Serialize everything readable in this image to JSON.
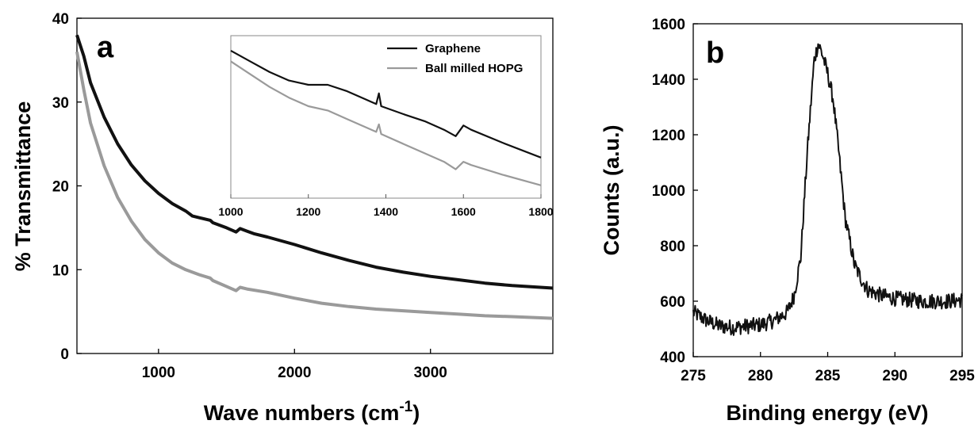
{
  "chart_data": [
    {
      "panel_label": "a",
      "type": "line",
      "xlabel": "Wave numbers (cm",
      "xlabel_sup": "-1",
      "xlabel_close": ")",
      "ylabel": "% Transmittance",
      "xlim": [
        400,
        3900
      ],
      "ylim": [
        0,
        40
      ],
      "xticks": [
        "1000",
        "2000",
        "3000"
      ],
      "yticks": [
        "0",
        "10",
        "20",
        "30",
        "40"
      ],
      "series": [
        {
          "name": "Graphene",
          "color": "#111111",
          "points": [
            [
              400,
              38.0
            ],
            [
              450,
              35.5
            ],
            [
              500,
              32.3
            ],
            [
              600,
              28.2
            ],
            [
              700,
              25.0
            ],
            [
              800,
              22.5
            ],
            [
              900,
              20.6
            ],
            [
              1000,
              19.1
            ],
            [
              1100,
              17.9
            ],
            [
              1200,
              17.0
            ],
            [
              1250,
              16.4
            ],
            [
              1300,
              16.2
            ],
            [
              1380,
              15.9
            ],
            [
              1400,
              15.6
            ],
            [
              1500,
              15.0
            ],
            [
              1570,
              14.5
            ],
            [
              1600,
              14.9
            ],
            [
              1650,
              14.6
            ],
            [
              1700,
              14.3
            ],
            [
              1800,
              13.9
            ],
            [
              2000,
              13.0
            ],
            [
              2200,
              12.0
            ],
            [
              2400,
              11.1
            ],
            [
              2600,
              10.3
            ],
            [
              2800,
              9.7
            ],
            [
              3000,
              9.2
            ],
            [
              3200,
              8.8
            ],
            [
              3400,
              8.4
            ],
            [
              3600,
              8.1
            ],
            [
              3900,
              7.8
            ]
          ]
        },
        {
          "name": "Ball milled HOPG",
          "color": "#9a9a9a",
          "points": [
            [
              400,
              36.0
            ],
            [
              450,
              31.5
            ],
            [
              500,
              27.5
            ],
            [
              600,
              22.4
            ],
            [
              700,
              18.6
            ],
            [
              800,
              15.8
            ],
            [
              900,
              13.6
            ],
            [
              1000,
              12.0
            ],
            [
              1100,
              10.8
            ],
            [
              1200,
              10.0
            ],
            [
              1300,
              9.4
            ],
            [
              1380,
              9.0
            ],
            [
              1400,
              8.7
            ],
            [
              1500,
              8.0
            ],
            [
              1570,
              7.5
            ],
            [
              1600,
              7.9
            ],
            [
              1650,
              7.7
            ],
            [
              1800,
              7.3
            ],
            [
              2000,
              6.6
            ],
            [
              2200,
              6.0
            ],
            [
              2400,
              5.6
            ],
            [
              2600,
              5.3
            ],
            [
              2800,
              5.1
            ],
            [
              3000,
              4.9
            ],
            [
              3200,
              4.7
            ],
            [
              3400,
              4.5
            ],
            [
              3600,
              4.4
            ],
            [
              3900,
              4.2
            ]
          ]
        }
      ],
      "inset": {
        "type": "line",
        "xlim": [
          1000,
          1800
        ],
        "xticks": [
          "1000",
          "1200",
          "1400",
          "1600",
          "1800"
        ],
        "series": [
          {
            "name": "Graphene",
            "points": [
              [
                1000,
                19.2
              ],
              [
                1050,
                18.7
              ],
              [
                1100,
                18.2
              ],
              [
                1150,
                17.8
              ],
              [
                1200,
                17.6
              ],
              [
                1250,
                17.6
              ],
              [
                1300,
                17.3
              ],
              [
                1350,
                16.9
              ],
              [
                1375,
                16.7
              ],
              [
                1382,
                17.2
              ],
              [
                1388,
                16.6
              ],
              [
                1450,
                16.2
              ],
              [
                1500,
                15.9
              ],
              [
                1550,
                15.5
              ],
              [
                1580,
                15.2
              ],
              [
                1600,
                15.7
              ],
              [
                1620,
                15.5
              ],
              [
                1700,
                14.9
              ],
              [
                1800,
                14.2
              ]
            ]
          },
          {
            "name": "Ball milled HOPG",
            "points": [
              [
                1000,
                18.7
              ],
              [
                1050,
                18.1
              ],
              [
                1100,
                17.5
              ],
              [
                1150,
                17.0
              ],
              [
                1200,
                16.6
              ],
              [
                1250,
                16.4
              ],
              [
                1300,
                16.0
              ],
              [
                1350,
                15.6
              ],
              [
                1375,
                15.4
              ],
              [
                1382,
                15.75
              ],
              [
                1388,
                15.3
              ],
              [
                1450,
                14.8
              ],
              [
                1500,
                14.4
              ],
              [
                1550,
                14.0
              ],
              [
                1580,
                13.65
              ],
              [
                1600,
                14.0
              ],
              [
                1620,
                13.85
              ],
              [
                1700,
                13.4
              ],
              [
                1800,
                12.9
              ]
            ]
          }
        ]
      }
    },
    {
      "panel_label": "b",
      "type": "line",
      "xlabel": "Binding energy (eV)",
      "ylabel": "Counts (a.u.)",
      "xlim": [
        275,
        295
      ],
      "ylim": [
        400,
        1600
      ],
      "xticks": [
        "275",
        "280",
        "285",
        "290",
        "295"
      ],
      "yticks": [
        "400",
        "600",
        "800",
        "1000",
        "1200",
        "1400",
        "1600"
      ],
      "series": [
        {
          "name": "",
          "color": "#111111",
          "noise_amplitude": 28,
          "points": [
            [
              275,
              560
            ],
            [
              276,
              530
            ],
            [
              277,
              510
            ],
            [
              278,
              505
            ],
            [
              279,
              510
            ],
            [
              280,
              515
            ],
            [
              281,
              530
            ],
            [
              282,
              560
            ],
            [
              282.5,
              620
            ],
            [
              283,
              760
            ],
            [
              283.5,
              1150
            ],
            [
              284,
              1470
            ],
            [
              284.3,
              1530
            ],
            [
              284.6,
              1490
            ],
            [
              285,
              1420
            ],
            [
              285.4,
              1330
            ],
            [
              285.8,
              1150
            ],
            [
              286.3,
              900
            ],
            [
              287,
              730
            ],
            [
              287.5,
              680
            ],
            [
              288,
              640
            ],
            [
              289,
              620
            ],
            [
              290,
              610
            ],
            [
              291,
              605
            ],
            [
              292,
              600
            ],
            [
              293,
              600
            ],
            [
              294,
              600
            ],
            [
              295,
              605
            ]
          ]
        }
      ]
    }
  ]
}
